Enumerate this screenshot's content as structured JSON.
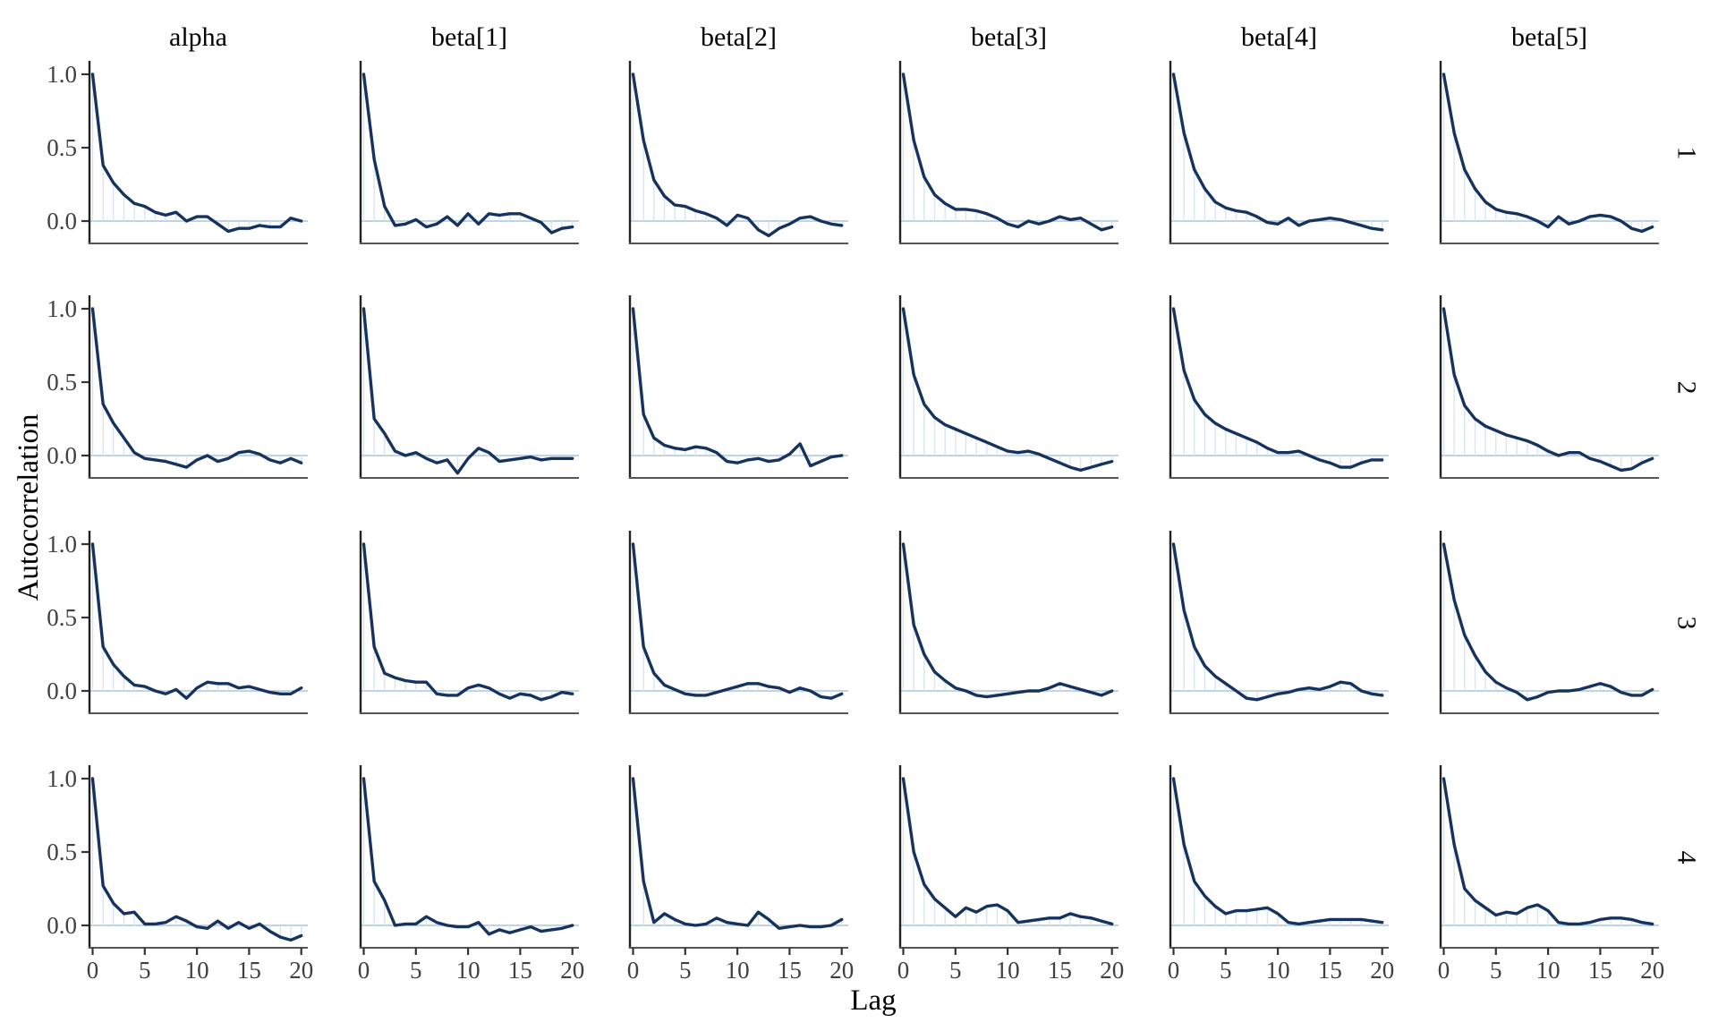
{
  "figure": {
    "ylabel": "Autocorrelation",
    "xlabel": "Lag",
    "column_titles": [
      "alpha",
      "beta[1]",
      "beta[2]",
      "beta[3]",
      "beta[4]",
      "beta[5]"
    ],
    "row_labels": [
      "1",
      "2",
      "3",
      "4"
    ],
    "y_tick_labels": [
      "1.0",
      "0.5",
      "0.0"
    ],
    "x_tick_labels": [
      "0",
      "5",
      "10",
      "15",
      "20"
    ],
    "colors": {
      "line": "#16335f",
      "bar": "#d8e6f1",
      "zero_line": "#a9c6da",
      "left_spine": "#222222",
      "bottom_spine": "#555555",
      "tick_mark": "#333333",
      "tick_label": "#404040",
      "text": "#000000"
    }
  },
  "chart_data": {
    "type": "line",
    "title": "",
    "xlabel": "Lag",
    "ylabel": "Autocorrelation",
    "x": [
      0,
      1,
      2,
      3,
      4,
      5,
      6,
      7,
      8,
      9,
      10,
      11,
      12,
      13,
      14,
      15,
      16,
      17,
      18,
      19,
      20
    ],
    "x_ticks": [
      0,
      5,
      10,
      15,
      20
    ],
    "y_ticks": [
      0.0,
      0.5,
      1.0
    ],
    "xlim": [
      -0.5,
      20.8
    ],
    "ylim": [
      -0.155,
      1.09
    ],
    "grid": false,
    "legend": "none",
    "columns": [
      "alpha",
      "beta[1]",
      "beta[2]",
      "beta[3]",
      "beta[4]",
      "beta[5]"
    ],
    "rows": [
      "1",
      "2",
      "3",
      "4"
    ],
    "series": [
      {
        "parameter": "alpha",
        "chain": "1",
        "values": [
          1.0,
          0.38,
          0.26,
          0.18,
          0.12,
          0.1,
          0.06,
          0.04,
          0.06,
          0.0,
          0.03,
          0.03,
          -0.02,
          -0.07,
          -0.05,
          -0.05,
          -0.03,
          -0.04,
          -0.04,
          0.02,
          0.0
        ]
      },
      {
        "parameter": "beta[1]",
        "chain": "1",
        "values": [
          1.0,
          0.42,
          0.1,
          -0.03,
          -0.02,
          0.01,
          -0.04,
          -0.02,
          0.03,
          -0.03,
          0.05,
          -0.02,
          0.05,
          0.04,
          0.05,
          0.05,
          0.02,
          -0.01,
          -0.08,
          -0.05,
          -0.04
        ]
      },
      {
        "parameter": "beta[2]",
        "chain": "1",
        "values": [
          1.0,
          0.55,
          0.28,
          0.17,
          0.11,
          0.1,
          0.07,
          0.05,
          0.02,
          -0.03,
          0.04,
          0.02,
          -0.06,
          -0.1,
          -0.05,
          -0.02,
          0.02,
          0.03,
          0.0,
          -0.02,
          -0.03
        ]
      },
      {
        "parameter": "beta[3]",
        "chain": "1",
        "values": [
          1.0,
          0.55,
          0.3,
          0.18,
          0.12,
          0.08,
          0.08,
          0.07,
          0.05,
          0.02,
          -0.02,
          -0.04,
          0.0,
          -0.02,
          0.0,
          0.03,
          0.01,
          0.02,
          -0.02,
          -0.06,
          -0.04
        ]
      },
      {
        "parameter": "beta[4]",
        "chain": "1",
        "values": [
          1.0,
          0.6,
          0.35,
          0.22,
          0.13,
          0.09,
          0.07,
          0.06,
          0.03,
          -0.01,
          -0.02,
          0.02,
          -0.03,
          0.0,
          0.01,
          0.02,
          0.01,
          -0.01,
          -0.03,
          -0.05,
          -0.06
        ]
      },
      {
        "parameter": "beta[5]",
        "chain": "1",
        "values": [
          1.0,
          0.6,
          0.35,
          0.22,
          0.13,
          0.08,
          0.06,
          0.05,
          0.03,
          0.0,
          -0.04,
          0.03,
          -0.02,
          0.0,
          0.03,
          0.04,
          0.03,
          0.0,
          -0.05,
          -0.07,
          -0.04
        ]
      },
      {
        "parameter": "alpha",
        "chain": "2",
        "values": [
          1.0,
          0.35,
          0.22,
          0.12,
          0.02,
          -0.02,
          -0.03,
          -0.04,
          -0.06,
          -0.08,
          -0.03,
          0.0,
          -0.04,
          -0.02,
          0.02,
          0.03,
          0.01,
          -0.03,
          -0.05,
          -0.02,
          -0.05
        ]
      },
      {
        "parameter": "beta[1]",
        "chain": "2",
        "values": [
          1.0,
          0.25,
          0.15,
          0.03,
          0.0,
          0.02,
          -0.02,
          -0.05,
          -0.03,
          -0.12,
          -0.02,
          0.05,
          0.02,
          -0.04,
          -0.03,
          -0.02,
          -0.01,
          -0.03,
          -0.02,
          -0.02,
          -0.02
        ]
      },
      {
        "parameter": "beta[2]",
        "chain": "2",
        "values": [
          1.0,
          0.28,
          0.12,
          0.07,
          0.05,
          0.04,
          0.06,
          0.05,
          0.02,
          -0.04,
          -0.05,
          -0.03,
          -0.02,
          -0.04,
          -0.03,
          0.01,
          0.08,
          -0.07,
          -0.04,
          -0.01,
          0.0
        ]
      },
      {
        "parameter": "beta[3]",
        "chain": "2",
        "values": [
          1.0,
          0.55,
          0.35,
          0.26,
          0.21,
          0.18,
          0.15,
          0.12,
          0.09,
          0.06,
          0.03,
          0.02,
          0.03,
          0.01,
          -0.02,
          -0.05,
          -0.08,
          -0.1,
          -0.08,
          -0.06,
          -0.04
        ]
      },
      {
        "parameter": "beta[4]",
        "chain": "2",
        "values": [
          1.0,
          0.58,
          0.38,
          0.28,
          0.22,
          0.18,
          0.15,
          0.12,
          0.09,
          0.05,
          0.02,
          0.02,
          0.03,
          0.0,
          -0.03,
          -0.05,
          -0.08,
          -0.08,
          -0.05,
          -0.03,
          -0.03
        ]
      },
      {
        "parameter": "beta[5]",
        "chain": "2",
        "values": [
          1.0,
          0.55,
          0.34,
          0.25,
          0.2,
          0.17,
          0.14,
          0.12,
          0.1,
          0.07,
          0.03,
          0.0,
          0.02,
          0.02,
          -0.02,
          -0.04,
          -0.07,
          -0.1,
          -0.09,
          -0.05,
          -0.02
        ]
      },
      {
        "parameter": "alpha",
        "chain": "3",
        "values": [
          1.0,
          0.3,
          0.18,
          0.1,
          0.04,
          0.03,
          0.0,
          -0.02,
          0.01,
          -0.05,
          0.02,
          0.06,
          0.05,
          0.05,
          0.02,
          0.03,
          0.01,
          -0.01,
          -0.02,
          -0.02,
          0.02
        ]
      },
      {
        "parameter": "beta[1]",
        "chain": "3",
        "values": [
          1.0,
          0.3,
          0.12,
          0.09,
          0.07,
          0.06,
          0.06,
          -0.02,
          -0.03,
          -0.03,
          0.02,
          0.04,
          0.02,
          -0.02,
          -0.05,
          -0.02,
          -0.03,
          -0.06,
          -0.04,
          -0.01,
          -0.02
        ]
      },
      {
        "parameter": "beta[2]",
        "chain": "3",
        "values": [
          1.0,
          0.3,
          0.12,
          0.04,
          0.01,
          -0.02,
          -0.03,
          -0.03,
          -0.01,
          0.01,
          0.03,
          0.05,
          0.05,
          0.03,
          0.02,
          -0.01,
          0.02,
          0.0,
          -0.04,
          -0.05,
          -0.02
        ]
      },
      {
        "parameter": "beta[3]",
        "chain": "3",
        "values": [
          1.0,
          0.45,
          0.25,
          0.13,
          0.07,
          0.02,
          0.0,
          -0.03,
          -0.04,
          -0.03,
          -0.02,
          -0.01,
          0.0,
          0.0,
          0.02,
          0.05,
          0.03,
          0.01,
          -0.01,
          -0.03,
          0.0
        ]
      },
      {
        "parameter": "beta[4]",
        "chain": "3",
        "values": [
          1.0,
          0.55,
          0.3,
          0.17,
          0.1,
          0.05,
          0.0,
          -0.05,
          -0.06,
          -0.04,
          -0.02,
          -0.01,
          0.01,
          0.02,
          0.01,
          0.03,
          0.06,
          0.05,
          0.0,
          -0.02,
          -0.03
        ]
      },
      {
        "parameter": "beta[5]",
        "chain": "3",
        "values": [
          1.0,
          0.62,
          0.38,
          0.24,
          0.13,
          0.06,
          0.02,
          -0.01,
          -0.06,
          -0.04,
          -0.01,
          0.0,
          0.0,
          0.01,
          0.03,
          0.05,
          0.03,
          -0.01,
          -0.03,
          -0.03,
          0.01
        ]
      },
      {
        "parameter": "alpha",
        "chain": "4",
        "values": [
          1.0,
          0.27,
          0.15,
          0.08,
          0.09,
          0.01,
          0.01,
          0.02,
          0.06,
          0.03,
          -0.01,
          -0.02,
          0.03,
          -0.02,
          0.02,
          -0.02,
          0.01,
          -0.04,
          -0.08,
          -0.1,
          -0.07
        ]
      },
      {
        "parameter": "beta[1]",
        "chain": "4",
        "values": [
          1.0,
          0.3,
          0.17,
          0.0,
          0.01,
          0.01,
          0.06,
          0.02,
          0.0,
          -0.01,
          -0.01,
          0.02,
          -0.06,
          -0.03,
          -0.05,
          -0.03,
          -0.01,
          -0.04,
          -0.03,
          -0.02,
          0.0
        ]
      },
      {
        "parameter": "beta[2]",
        "chain": "4",
        "values": [
          1.0,
          0.3,
          0.02,
          0.08,
          0.04,
          0.01,
          0.0,
          0.01,
          0.05,
          0.02,
          0.01,
          0.0,
          0.09,
          0.04,
          -0.02,
          -0.01,
          0.0,
          -0.01,
          -0.01,
          0.0,
          0.04
        ]
      },
      {
        "parameter": "beta[3]",
        "chain": "4",
        "values": [
          1.0,
          0.5,
          0.28,
          0.18,
          0.12,
          0.06,
          0.12,
          0.09,
          0.13,
          0.14,
          0.1,
          0.02,
          0.03,
          0.04,
          0.05,
          0.05,
          0.08,
          0.06,
          0.05,
          0.03,
          0.01
        ]
      },
      {
        "parameter": "beta[4]",
        "chain": "4",
        "values": [
          1.0,
          0.55,
          0.3,
          0.2,
          0.13,
          0.08,
          0.1,
          0.1,
          0.11,
          0.12,
          0.08,
          0.02,
          0.01,
          0.02,
          0.03,
          0.04,
          0.04,
          0.04,
          0.04,
          0.03,
          0.02
        ]
      },
      {
        "parameter": "beta[5]",
        "chain": "4",
        "values": [
          1.0,
          0.55,
          0.25,
          0.17,
          0.12,
          0.07,
          0.09,
          0.08,
          0.12,
          0.14,
          0.1,
          0.02,
          0.01,
          0.01,
          0.02,
          0.04,
          0.05,
          0.05,
          0.04,
          0.02,
          0.01
        ]
      }
    ]
  }
}
